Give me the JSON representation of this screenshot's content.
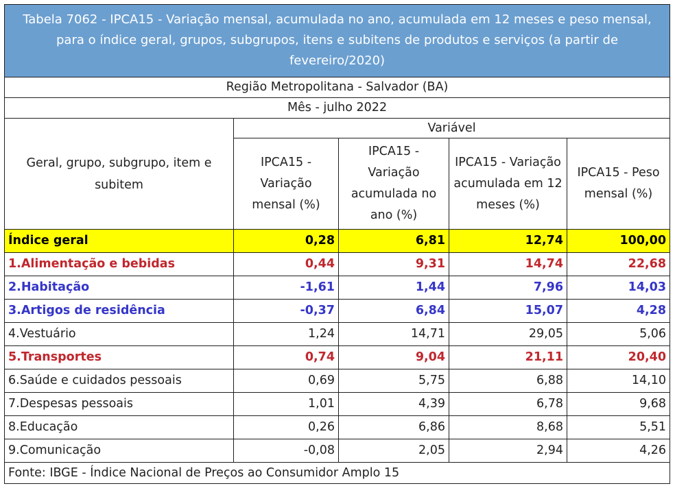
{
  "title": "Tabela 7062 - IPCA15 - Variação mensal, acumulada no ano, acumulada em 12 meses e peso mensal, para o índice geral, grupos, subgrupos, itens e subitens de produtos e serviços (a partir de fevereiro/2020)",
  "region": "Região Metropolitana - Salvador (BA)",
  "month": "Mês - julho 2022",
  "variable_label": "Variável",
  "first_col_header": "Geral, grupo, subgrupo, item e subitem",
  "columns": [
    "IPCA15 - Variação mensal (%)",
    "IPCA15 - Variação acumulada no ano (%)",
    "IPCA15 - Variação acumulada em 12 meses (%)",
    "IPCA15 - Peso mensal (%)"
  ],
  "rows": [
    {
      "label": "Índice geral",
      "values": [
        "0,28",
        "6,81",
        "12,74",
        "100,00"
      ],
      "style": "geral"
    },
    {
      "label": "1.Alimentação e bebidas",
      "values": [
        "0,44",
        "9,31",
        "14,74",
        "22,68"
      ],
      "style": "red"
    },
    {
      "label": "2.Habitação",
      "values": [
        "-1,61",
        "1,44",
        "7,96",
        "14,03"
      ],
      "style": "blue"
    },
    {
      "label": "3.Artigos de residência",
      "values": [
        "-0,37",
        "6,84",
        "15,07",
        "4,28"
      ],
      "style": "blue"
    },
    {
      "label": "4.Vestuário",
      "values": [
        "1,24",
        "14,71",
        "29,05",
        "5,06"
      ],
      "style": "plain"
    },
    {
      "label": "5.Transportes",
      "values": [
        "0,74",
        "9,04",
        "21,11",
        "20,40"
      ],
      "style": "red"
    },
    {
      "label": "6.Saúde e cuidados pessoais",
      "values": [
        "0,69",
        "5,75",
        "6,88",
        "14,10"
      ],
      "style": "plain"
    },
    {
      "label": "7.Despesas pessoais",
      "values": [
        "1,01",
        "4,39",
        "6,78",
        "9,68"
      ],
      "style": "plain"
    },
    {
      "label": "8.Educação",
      "values": [
        "0,26",
        "6,86",
        "8,68",
        "5,51"
      ],
      "style": "plain"
    },
    {
      "label": "9.Comunicação",
      "values": [
        "-0,08",
        "2,05",
        "2,94",
        "4,26"
      ],
      "style": "plain"
    }
  ],
  "source": "Fonte: IBGE - Índice Nacional de Preços ao Consumidor Amplo 15",
  "colors": {
    "title_bg": "#6b9fd0",
    "highlight": "#ffff00",
    "red": "#c0272d",
    "blue": "#3535c8"
  }
}
